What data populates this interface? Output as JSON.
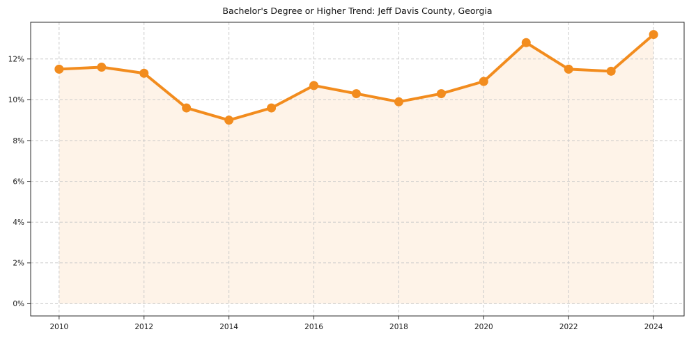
{
  "title": "Bachelor's Degree or Higher Trend: Jeff Davis County, Georgia",
  "colors": {
    "line": "#f28c1e",
    "marker": "#f28c1e",
    "area_fill": "rgba(242,140,30,0.10)",
    "grid": "#c9c9c9",
    "axis": "#2a2a2a",
    "text": "#1a1a1a",
    "background": "#ffffff"
  },
  "chart_data": {
    "type": "line",
    "title": "Bachelor's Degree or Higher Trend: Jeff Davis County, Georgia",
    "x": [
      2010,
      2011,
      2012,
      2013,
      2014,
      2015,
      2016,
      2017,
      2018,
      2019,
      2020,
      2021,
      2022,
      2023,
      2024
    ],
    "values": [
      11.5,
      11.6,
      11.3,
      9.6,
      9.0,
      9.6,
      10.7,
      10.3,
      9.9,
      10.3,
      10.9,
      12.8,
      11.5,
      11.4,
      13.2
    ],
    "unit": "%",
    "xlabel": "",
    "ylabel": "",
    "xticks": [
      2010,
      2012,
      2014,
      2016,
      2018,
      2020,
      2022,
      2024
    ],
    "xtick_labels": [
      "2010",
      "2012",
      "2014",
      "2016",
      "2018",
      "2020",
      "2022",
      "2024"
    ],
    "yticks": [
      0,
      2,
      4,
      6,
      8,
      10,
      12
    ],
    "ytick_labels": [
      "0%",
      "2%",
      "4%",
      "6%",
      "8%",
      "10%",
      "12%"
    ],
    "xlim": [
      2009.33,
      2024.72
    ],
    "ylim": [
      -0.6,
      13.8
    ],
    "grid": true,
    "grid_style": "dashed",
    "legend": false,
    "marker": "circle",
    "area_fill": true,
    "area_baseline": 0
  }
}
